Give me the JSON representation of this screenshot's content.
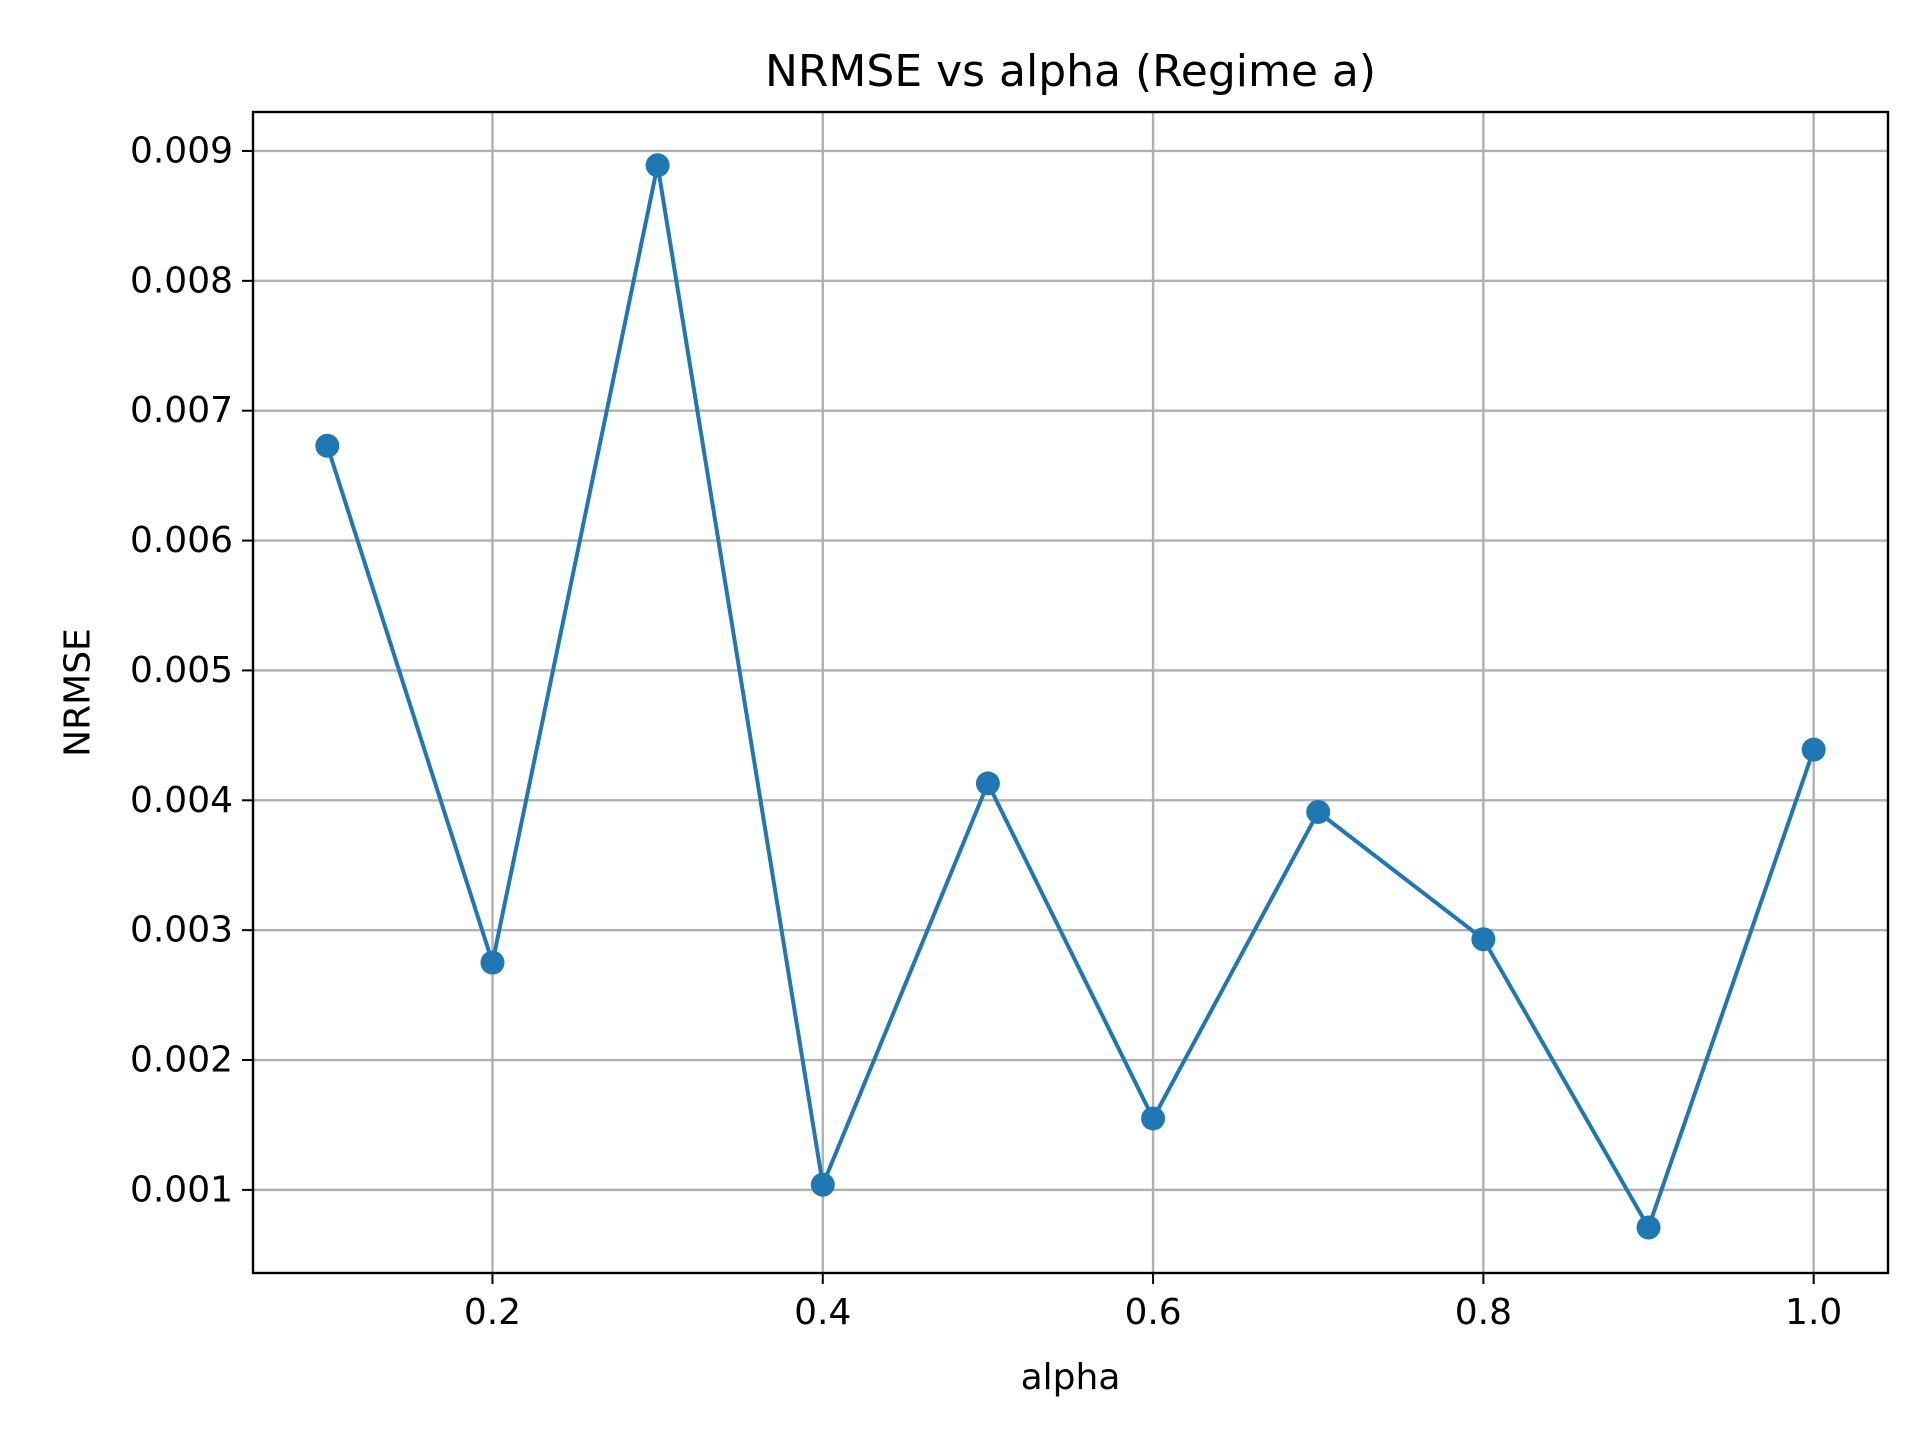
{
  "chart_data": {
    "type": "line",
    "title": "NRMSE vs alpha (Regime a)",
    "xlabel": "alpha",
    "ylabel": "NRMSE",
    "xlim": [
      0.055,
      1.045
    ],
    "ylim": [
      0.00036,
      0.0093
    ],
    "xticks": [
      0.2,
      0.4,
      0.6,
      0.8,
      1.0
    ],
    "xtick_labels": [
      "0.2",
      "0.4",
      "0.6",
      "0.8",
      "1.0"
    ],
    "yticks": [
      0.001,
      0.002,
      0.003,
      0.004,
      0.005,
      0.006,
      0.007,
      0.008,
      0.009
    ],
    "ytick_labels": [
      "0.001",
      "0.002",
      "0.003",
      "0.004",
      "0.005",
      "0.006",
      "0.007",
      "0.008",
      "0.009"
    ],
    "grid": true,
    "series": [
      {
        "color": "#1f77b4",
        "marker": "circle",
        "x": [
          0.1,
          0.2,
          0.3,
          0.4,
          0.5,
          0.6,
          0.7,
          0.8,
          0.9,
          1.0
        ],
        "y": [
          0.00673,
          0.00275,
          0.00889,
          0.00104,
          0.00413,
          0.00155,
          0.00391,
          0.00293,
          0.00071,
          0.00439
        ]
      }
    ]
  }
}
